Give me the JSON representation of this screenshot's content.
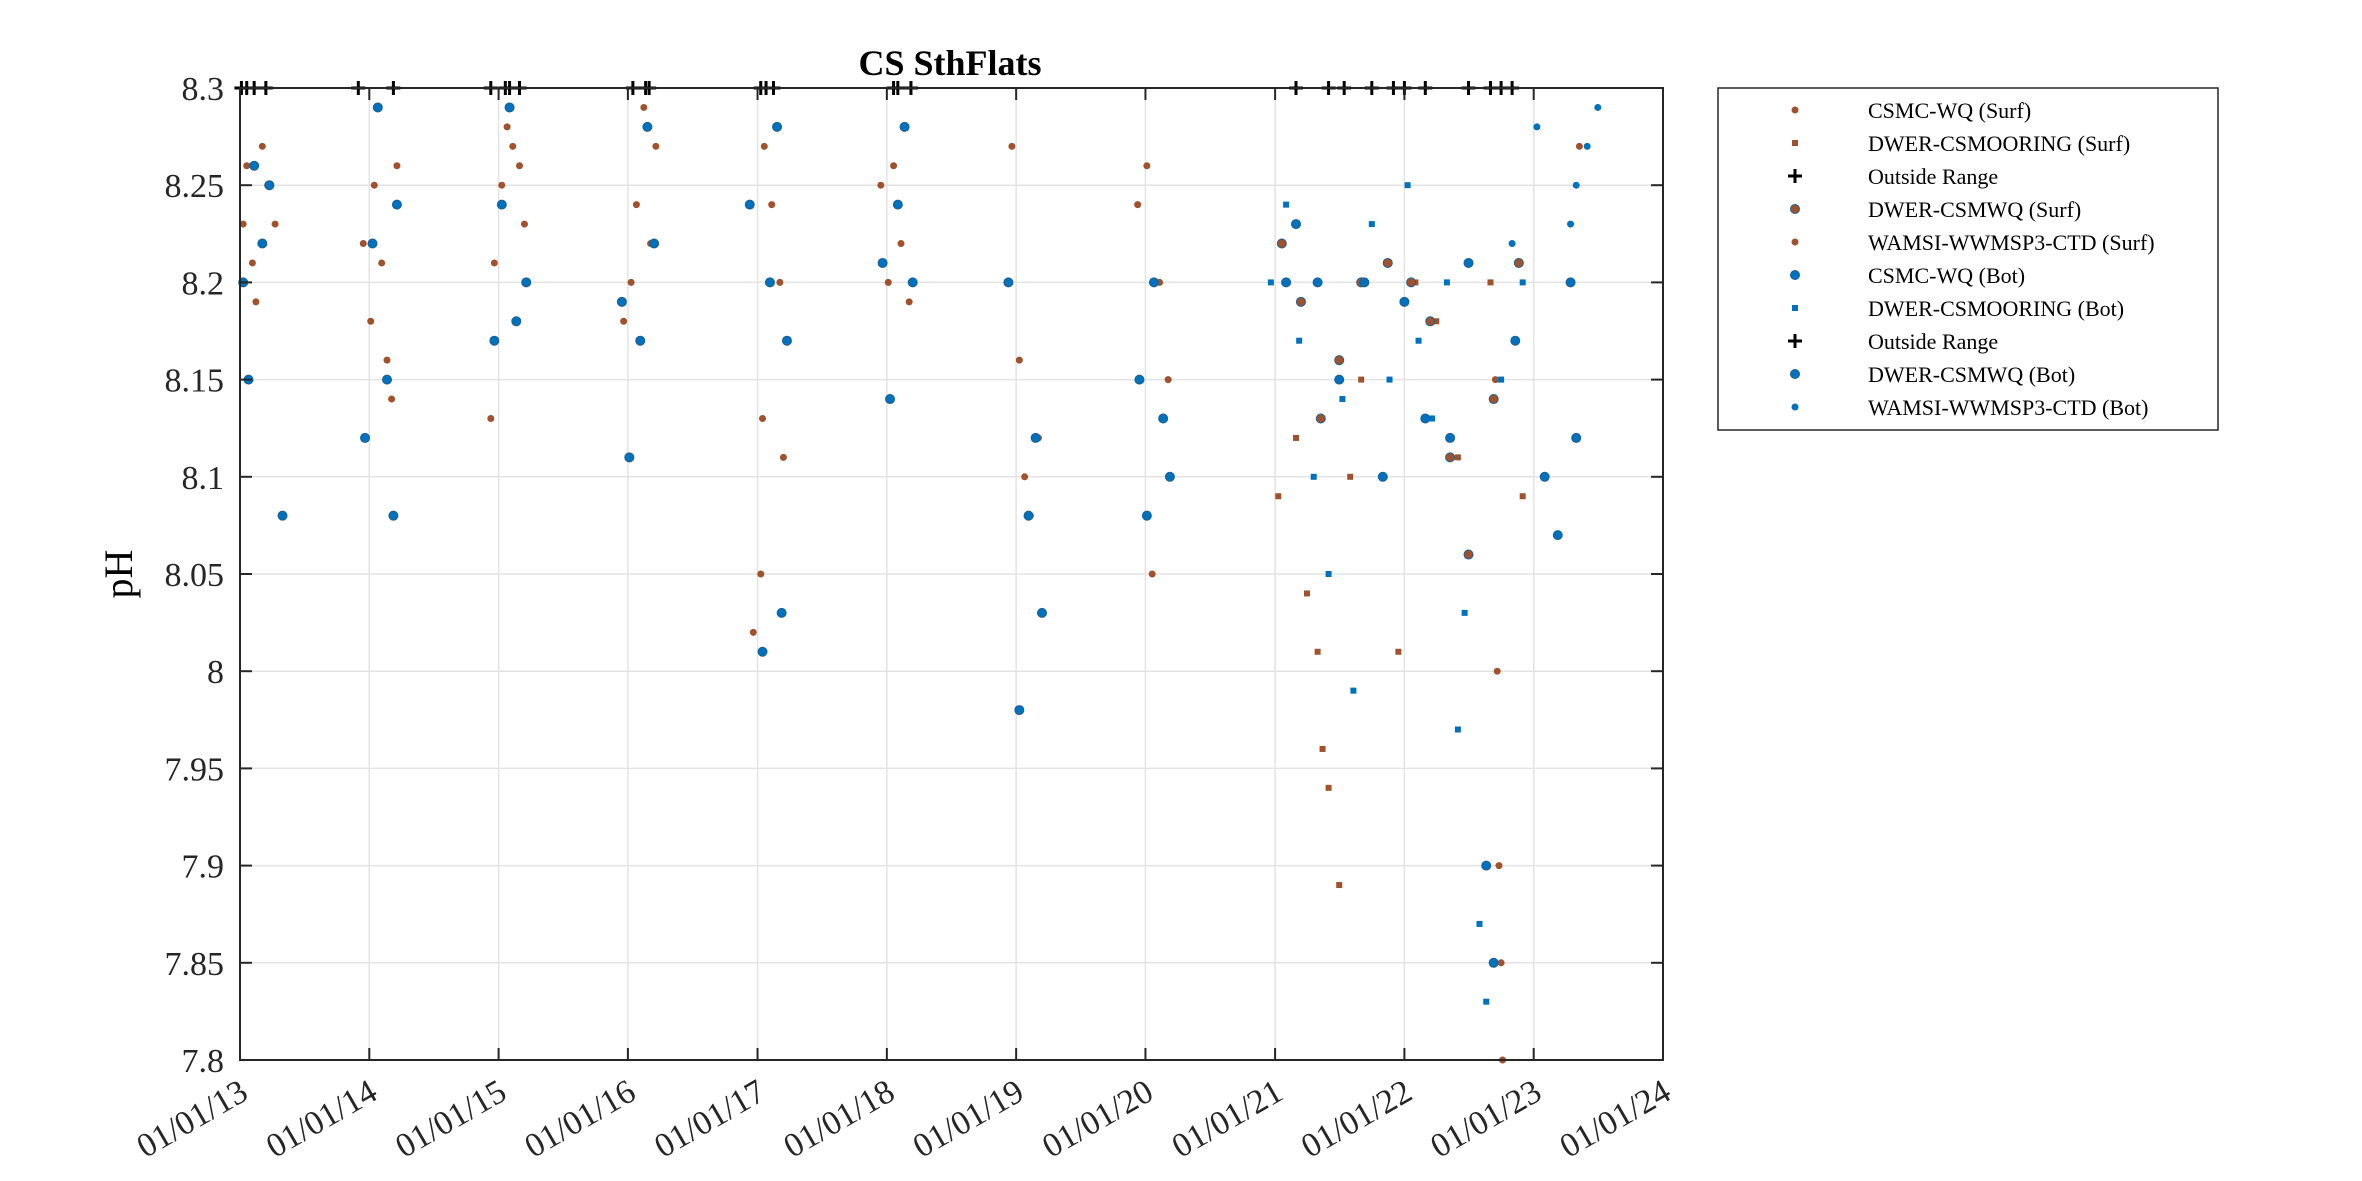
{
  "chart_data": {
    "type": "scatter",
    "title": "CS SthFlats",
    "xlabel": "",
    "ylabel": "pH",
    "ylim": [
      7.8,
      8.3
    ],
    "xlim": [
      "2013-01-01",
      "2024-01-01"
    ],
    "x_ticks": [
      "01/01/13",
      "01/01/14",
      "01/01/15",
      "01/01/16",
      "01/01/17",
      "01/01/18",
      "01/01/19",
      "01/01/20",
      "01/01/21",
      "01/01/22",
      "01/01/23",
      "01/01/24"
    ],
    "y_ticks": [
      "7.8",
      "7.85",
      "7.9",
      "7.95",
      "8",
      "8.05",
      "8.1",
      "8.15",
      "8.2",
      "8.25",
      "8.3"
    ],
    "grid": true,
    "legend_position": "outside-top-right",
    "colors": {
      "surf": "#A0522D",
      "bot": "#0072BD",
      "outside": "#000000"
    },
    "series": [
      {
        "name": "CSMC-WQ (Surf)",
        "marker": "dot",
        "color": "#A0522D",
        "points": [
          [
            "2013-01-10",
            8.23
          ],
          [
            "2013-01-20",
            8.26
          ],
          [
            "2013-02-05",
            8.21
          ],
          [
            "2013-02-15",
            8.19
          ],
          [
            "2013-03-05",
            8.27
          ],
          [
            "2013-03-20",
            8.25
          ],
          [
            "2013-04-10",
            8.23
          ],
          [
            "2013-12-15",
            8.22
          ],
          [
            "2014-01-05",
            8.18
          ],
          [
            "2014-01-15",
            8.25
          ],
          [
            "2014-02-05",
            8.21
          ],
          [
            "2014-02-20",
            8.16
          ],
          [
            "2014-03-05",
            8.14
          ],
          [
            "2014-03-20",
            8.26
          ],
          [
            "2014-12-10",
            8.13
          ],
          [
            "2014-12-20",
            8.21
          ],
          [
            "2015-01-10",
            8.25
          ],
          [
            "2015-01-25",
            8.28
          ],
          [
            "2015-02-10",
            8.27
          ],
          [
            "2015-03-01",
            8.26
          ],
          [
            "2015-03-15",
            8.23
          ],
          [
            "2015-12-20",
            8.18
          ],
          [
            "2016-01-10",
            8.2
          ],
          [
            "2016-01-25",
            8.24
          ],
          [
            "2016-02-15",
            8.29
          ],
          [
            "2016-03-05",
            8.22
          ],
          [
            "2016-03-20",
            8.27
          ],
          [
            "2016-12-20",
            8.02
          ],
          [
            "2017-01-10",
            8.05
          ],
          [
            "2017-01-15",
            8.13
          ],
          [
            "2017-01-20",
            8.27
          ],
          [
            "2017-02-10",
            8.24
          ],
          [
            "2017-03-05",
            8.2
          ],
          [
            "2017-03-15",
            8.11
          ],
          [
            "2017-12-15",
            8.25
          ],
          [
            "2018-01-05",
            8.2
          ],
          [
            "2018-01-20",
            8.26
          ],
          [
            "2018-02-10",
            8.22
          ],
          [
            "2018-03-05",
            8.19
          ],
          [
            "2018-12-20",
            8.27
          ],
          [
            "2019-01-10",
            8.16
          ],
          [
            "2019-01-25",
            8.1
          ],
          [
            "2019-02-10",
            8.08
          ],
          [
            "2019-03-05",
            8.12
          ],
          [
            "2019-12-10",
            8.24
          ],
          [
            "2020-01-05",
            8.26
          ],
          [
            "2020-01-20",
            8.05
          ],
          [
            "2020-02-10",
            8.2
          ],
          [
            "2020-03-05",
            8.15
          ]
        ]
      },
      {
        "name": "DWER-CSMOORING (Surf)",
        "marker": "square",
        "color": "#A0522D",
        "points": [
          [
            "2021-01-10",
            8.09
          ],
          [
            "2021-03-01",
            8.12
          ],
          [
            "2021-04-01",
            8.04
          ],
          [
            "2021-05-01",
            8.01
          ],
          [
            "2021-05-15",
            7.96
          ],
          [
            "2021-06-01",
            7.94
          ],
          [
            "2021-07-01",
            7.89
          ],
          [
            "2021-08-01",
            8.1
          ],
          [
            "2021-09-01",
            8.15
          ],
          [
            "2021-12-15",
            8.01
          ],
          [
            "2022-02-01",
            8.2
          ],
          [
            "2022-04-01",
            8.18
          ],
          [
            "2022-06-01",
            8.11
          ],
          [
            "2022-09-01",
            8.2
          ],
          [
            "2022-12-01",
            8.09
          ]
        ]
      },
      {
        "name": "Outside Range",
        "marker": "plus",
        "color": "#000000",
        "points": [
          [
            "2013-01-05",
            8.3
          ],
          [
            "2013-02-10",
            8.3
          ],
          [
            "2013-03-15",
            8.3
          ],
          [
            "2013-12-01",
            8.3
          ],
          [
            "2014-03-10",
            8.3
          ],
          [
            "2014-12-10",
            8.3
          ],
          [
            "2015-01-20",
            8.3
          ],
          [
            "2015-03-01",
            8.3
          ],
          [
            "2016-01-15",
            8.3
          ],
          [
            "2016-02-20",
            8.3
          ],
          [
            "2017-01-10",
            8.3
          ],
          [
            "2017-02-15",
            8.3
          ],
          [
            "2018-01-20",
            8.3
          ],
          [
            "2018-03-10",
            8.3
          ],
          [
            "2021-03-01",
            8.3
          ],
          [
            "2021-06-01",
            8.3
          ],
          [
            "2021-10-01",
            8.3
          ],
          [
            "2022-01-01",
            8.3
          ],
          [
            "2022-03-01",
            8.3
          ],
          [
            "2022-07-01",
            8.3
          ],
          [
            "2022-09-01",
            8.3
          ],
          [
            "2022-11-01",
            8.3
          ]
        ]
      },
      {
        "name": "DWER-CSMWQ (Surf)",
        "marker": "circle",
        "color": "#A0522D",
        "points": [
          [
            "2021-01-20",
            8.22
          ],
          [
            "2021-03-15",
            8.19
          ],
          [
            "2021-05-10",
            8.13
          ],
          [
            "2021-07-01",
            8.16
          ],
          [
            "2021-09-01",
            8.2
          ],
          [
            "2021-11-15",
            8.21
          ],
          [
            "2022-01-20",
            8.2
          ],
          [
            "2022-03-15",
            8.18
          ],
          [
            "2022-05-10",
            8.11
          ],
          [
            "2022-07-01",
            8.06
          ],
          [
            "2022-09-10",
            8.14
          ],
          [
            "2022-11-20",
            8.21
          ]
        ]
      },
      {
        "name": "WAMSI-WWMSP3-CTD (Surf)",
        "marker": "dot",
        "color": "#A0522D",
        "points": [
          [
            "2022-09-15",
            8.15
          ],
          [
            "2022-09-20",
            8.0
          ],
          [
            "2022-09-25",
            7.9
          ],
          [
            "2022-10-01",
            7.85
          ],
          [
            "2022-10-05",
            7.8
          ],
          [
            "2023-05-10",
            8.27
          ]
        ]
      },
      {
        "name": "CSMC-WQ (Bot)",
        "marker": "circle",
        "color": "#0072BD",
        "points": [
          [
            "2013-01-10",
            8.2
          ],
          [
            "2013-01-25",
            8.15
          ],
          [
            "2013-02-10",
            8.26
          ],
          [
            "2013-03-05",
            8.22
          ],
          [
            "2013-03-25",
            8.25
          ],
          [
            "2013-05-01",
            8.08
          ],
          [
            "2013-12-20",
            8.12
          ],
          [
            "2014-01-10",
            8.22
          ],
          [
            "2014-01-25",
            8.29
          ],
          [
            "2014-02-20",
            8.15
          ],
          [
            "2014-03-10",
            8.08
          ],
          [
            "2014-03-20",
            8.24
          ],
          [
            "2014-12-20",
            8.17
          ],
          [
            "2015-01-10",
            8.24
          ],
          [
            "2015-02-01",
            8.29
          ],
          [
            "2015-02-20",
            8.18
          ],
          [
            "2015-03-20",
            8.2
          ],
          [
            "2015-12-15",
            8.19
          ],
          [
            "2016-01-05",
            8.11
          ],
          [
            "2016-02-05",
            8.17
          ],
          [
            "2016-02-25",
            8.28
          ],
          [
            "2016-03-15",
            8.22
          ],
          [
            "2016-12-10",
            8.24
          ],
          [
            "2017-01-15",
            8.01
          ],
          [
            "2017-02-05",
            8.2
          ],
          [
            "2017-02-25",
            8.28
          ],
          [
            "2017-03-10",
            8.03
          ],
          [
            "2017-03-25",
            8.17
          ],
          [
            "2017-12-20",
            8.21
          ],
          [
            "2018-01-10",
            8.14
          ],
          [
            "2018-02-01",
            8.24
          ],
          [
            "2018-02-20",
            8.28
          ],
          [
            "2018-03-15",
            8.2
          ],
          [
            "2018-12-10",
            8.2
          ],
          [
            "2019-01-10",
            7.98
          ],
          [
            "2019-02-05",
            8.08
          ],
          [
            "2019-02-25",
            8.12
          ],
          [
            "2019-03-15",
            8.03
          ],
          [
            "2019-12-15",
            8.15
          ],
          [
            "2020-01-05",
            8.08
          ],
          [
            "2020-01-25",
            8.2
          ],
          [
            "2020-02-20",
            8.13
          ],
          [
            "2020-03-10",
            8.1
          ]
        ]
      },
      {
        "name": "DWER-CSMOORING (Bot)",
        "marker": "square",
        "color": "#0072BD",
        "points": [
          [
            "2020-12-20",
            8.2
          ],
          [
            "2021-02-01",
            8.24
          ],
          [
            "2021-03-10",
            8.17
          ],
          [
            "2021-04-20",
            8.1
          ],
          [
            "2021-06-01",
            8.05
          ],
          [
            "2021-07-10",
            8.14
          ],
          [
            "2021-08-10",
            7.99
          ],
          [
            "2021-10-01",
            8.23
          ],
          [
            "2021-11-20",
            8.15
          ],
          [
            "2022-01-10",
            8.25
          ],
          [
            "2022-02-10",
            8.17
          ],
          [
            "2022-03-20",
            8.13
          ],
          [
            "2022-05-01",
            8.2
          ],
          [
            "2022-06-01",
            7.97
          ],
          [
            "2022-06-20",
            8.03
          ],
          [
            "2022-08-01",
            7.87
          ],
          [
            "2022-08-20",
            7.83
          ],
          [
            "2022-10-01",
            8.15
          ],
          [
            "2022-12-01",
            8.2
          ]
        ]
      },
      {
        "name": "Outside Range",
        "marker": "plus",
        "color": "#000000",
        "points": [
          [
            "2013-01-20",
            8.3
          ],
          [
            "2015-02-01",
            8.3
          ],
          [
            "2016-03-01",
            8.3
          ],
          [
            "2017-01-25",
            8.3
          ],
          [
            "2018-02-01",
            8.3
          ],
          [
            "2021-07-15",
            8.3
          ],
          [
            "2021-12-01",
            8.3
          ],
          [
            "2022-10-01",
            8.3
          ]
        ]
      },
      {
        "name": "DWER-CSMWQ (Bot)",
        "marker": "circle",
        "color": "#0072BD",
        "points": [
          [
            "2021-02-01",
            8.2
          ],
          [
            "2021-03-01",
            8.23
          ],
          [
            "2021-05-01",
            8.2
          ],
          [
            "2021-07-01",
            8.15
          ],
          [
            "2021-09-10",
            8.2
          ],
          [
            "2021-11-01",
            8.1
          ],
          [
            "2022-01-01",
            8.19
          ],
          [
            "2022-03-01",
            8.13
          ],
          [
            "2022-05-10",
            8.12
          ],
          [
            "2022-07-01",
            8.21
          ],
          [
            "2022-08-20",
            7.9
          ],
          [
            "2022-09-10",
            7.85
          ],
          [
            "2022-11-10",
            8.17
          ],
          [
            "2023-02-01",
            8.1
          ],
          [
            "2023-03-10",
            8.07
          ],
          [
            "2023-04-15",
            8.2
          ],
          [
            "2023-05-01",
            8.12
          ]
        ]
      },
      {
        "name": "WAMSI-WWMSP3-CTD (Bot)",
        "marker": "dot",
        "color": "#0072BD",
        "points": [
          [
            "2022-11-01",
            8.22
          ],
          [
            "2023-01-10",
            8.28
          ],
          [
            "2023-04-15",
            8.23
          ],
          [
            "2023-05-01",
            8.25
          ],
          [
            "2023-06-01",
            8.27
          ],
          [
            "2023-07-01",
            8.29
          ]
        ]
      }
    ]
  }
}
